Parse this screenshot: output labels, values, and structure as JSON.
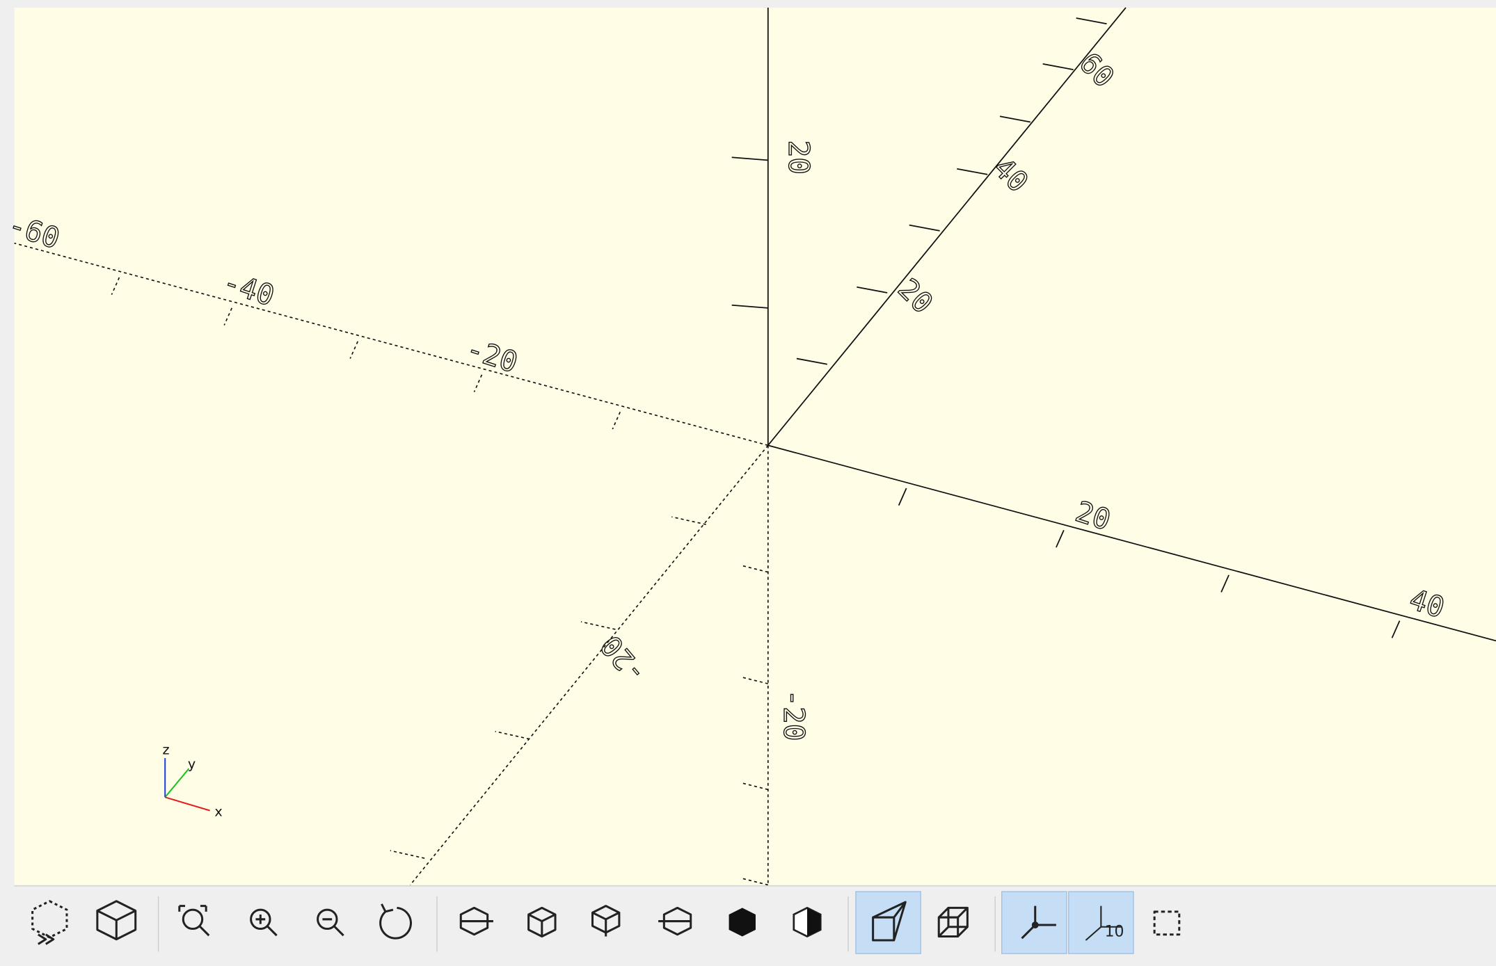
{
  "viewport": {
    "axis_labels": [
      "20",
      "40",
      "-20",
      "-40",
      "-60",
      "20",
      "40",
      "60",
      "-20",
      "20",
      "-20"
    ],
    "gizmo_labels": [
      "x",
      "y",
      "z"
    ]
  },
  "toolbar": {
    "grid_label": "10"
  }
}
